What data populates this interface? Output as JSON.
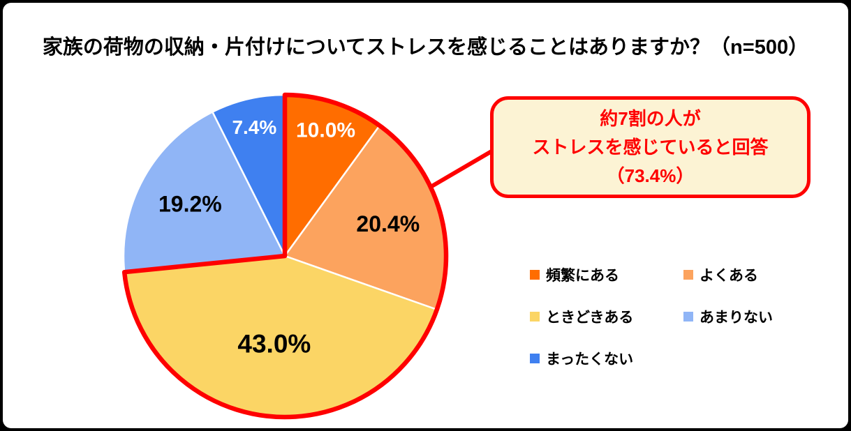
{
  "title": "家族の荷物の収納・片付けについてストレスを感じることはありますか？（n=500）",
  "chart_data": {
    "type": "pie",
    "title": "家族の荷物の収納・片付けについてストレスを感じることはありますか？（n=500）",
    "sample_size": "n=500",
    "categories": [
      "頻繁にある",
      "よくある",
      "ときどきある",
      "あまりない",
      "まったくない"
    ],
    "values": [
      10.0,
      20.4,
      43.0,
      19.2,
      7.4
    ],
    "unit": "%",
    "slice_labels": [
      "10.0%",
      "20.4%",
      "43.0%",
      "19.2%",
      "7.4%"
    ],
    "colors": [
      "#FF6D00",
      "#FCA35E",
      "#FBD565",
      "#90B5F6",
      "#3F80F0"
    ],
    "label_colors": [
      "#FFFFFF",
      "#000000",
      "#000000",
      "#000000",
      "#FFFFFF"
    ],
    "label_sizes": [
      30,
      32,
      37,
      32,
      28
    ],
    "label_radius_frac": [
      0.82,
      0.67,
      0.55,
      0.67,
      0.82
    ],
    "start_angle_deg": 0,
    "direction": "clockwise",
    "separator_color": "#FFFFFF",
    "highlight": {
      "slice_indices": [
        0,
        1,
        2
      ],
      "total": 73.4,
      "total_label": "73.4%",
      "color": "#FE0000"
    },
    "legend": {
      "position": "right-bottom",
      "columns": 2,
      "items": [
        {
          "label": "頻繁にある",
          "color": "#FF6D00"
        },
        {
          "label": "よくある",
          "color": "#FCA35E"
        },
        {
          "label": "ときどきある",
          "color": "#FBD565"
        },
        {
          "label": "あまりない",
          "color": "#90B5F6"
        },
        {
          "label": "まったくない",
          "color": "#3F80F0"
        }
      ]
    }
  },
  "callout": {
    "lines": [
      "約7割の人が",
      "ストレスを感じていると回答",
      "（73.4%）"
    ],
    "text_color": "#FE0000",
    "background": "#FCF3D4",
    "border_color": "#FE0000"
  },
  "frame": {
    "border_color": "#000000",
    "background": "#FFFFFF"
  }
}
